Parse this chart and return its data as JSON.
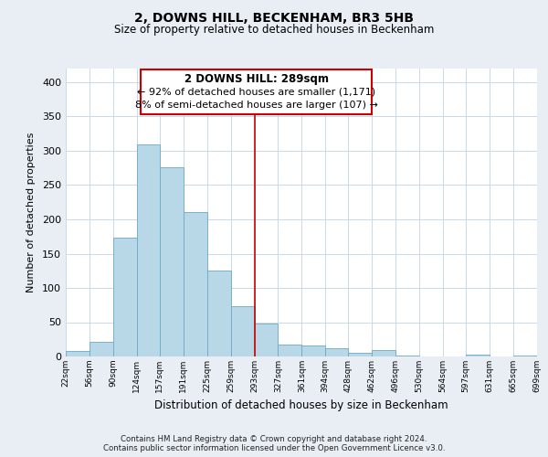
{
  "title": "2, DOWNS HILL, BECKENHAM, BR3 5HB",
  "subtitle": "Size of property relative to detached houses in Beckenham",
  "xlabel": "Distribution of detached houses by size in Beckenham",
  "ylabel": "Number of detached properties",
  "bar_color": "#b8d8e8",
  "bar_edge_color": "#6aaac8",
  "background_color": "#e8eef4",
  "plot_bg_color": "#ffffff",
  "grid_color": "#c8d8e8",
  "vline_color": "#cc0000",
  "vline_x": 293,
  "bin_edges": [
    22,
    56,
    90,
    124,
    157,
    191,
    225,
    259,
    293,
    327,
    361,
    394,
    428,
    462,
    496,
    530,
    564,
    597,
    631,
    665,
    699
  ],
  "bar_heights": [
    8,
    22,
    174,
    309,
    276,
    210,
    126,
    73,
    48,
    17,
    16,
    12,
    5,
    9,
    2,
    0,
    0,
    3,
    0,
    2
  ],
  "tick_labels": [
    "22sqm",
    "56sqm",
    "90sqm",
    "124sqm",
    "157sqm",
    "191sqm",
    "225sqm",
    "259sqm",
    "293sqm",
    "327sqm",
    "361sqm",
    "394sqm",
    "428sqm",
    "462sqm",
    "496sqm",
    "530sqm",
    "564sqm",
    "597sqm",
    "631sqm",
    "665sqm",
    "699sqm"
  ],
  "annotation_title": "2 DOWNS HILL: 289sqm",
  "annotation_line1": "← 92% of detached houses are smaller (1,171)",
  "annotation_line2": "8% of semi-detached houses are larger (107) →",
  "ylim": [
    0,
    420
  ],
  "yticks": [
    0,
    50,
    100,
    150,
    200,
    250,
    300,
    350,
    400
  ],
  "footer1": "Contains HM Land Registry data © Crown copyright and database right 2024.",
  "footer2": "Contains public sector information licensed under the Open Government Licence v3.0.",
  "ann_box_color": "#cc0000",
  "ann_face_color": "#ffffff"
}
